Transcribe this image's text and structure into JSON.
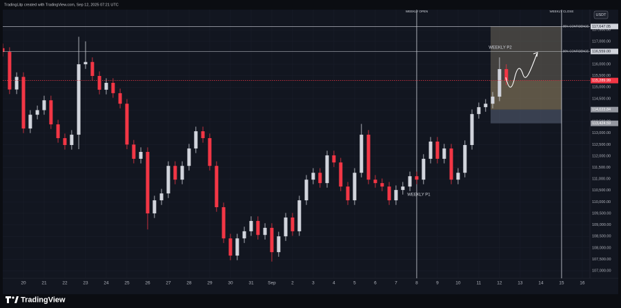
{
  "header": "TradingLitp created with TradingView.com, Sep 12, 2025 07:21 UTC",
  "footer": "TradingView",
  "chart_data": {
    "type": "candlestick",
    "currency": "USDT",
    "up_color": "#d1d4dc",
    "down_color": "#f23645",
    "grid": true,
    "x": [
      -1,
      -0.67,
      -0.33,
      0,
      0.33,
      0.67,
      1,
      1.33,
      1.67,
      2,
      2.33,
      2.67,
      3,
      3.33,
      3.67,
      4,
      4.33,
      4.67,
      5,
      5.33,
      5.67,
      6,
      6.33,
      6.67,
      7,
      7.33,
      7.67,
      8,
      8.33,
      8.67,
      9,
      9.33,
      9.67,
      10,
      10.33,
      10.67,
      11,
      11.33,
      11.67,
      12,
      12.33,
      12.67,
      13,
      13.33,
      13.67,
      14,
      14.33,
      14.67,
      15,
      15.33,
      15.67,
      16,
      16.33,
      16.67,
      17,
      17.33,
      17.67,
      18,
      18.33,
      18.67,
      19,
      19.33,
      19.67,
      20,
      20.33,
      20.67,
      21,
      21.33,
      21.67,
      22,
      22.33,
      22.67,
      23,
      23.33
    ],
    "open": [
      116700,
      116540,
      114900,
      115450,
      113200,
      113800,
      114000,
      114430,
      113380,
      112780,
      112480,
      112930,
      116000,
      116100,
      115490,
      114890,
      115190,
      114740,
      114280,
      112500,
      111880,
      112180,
      109500,
      110070,
      110370,
      111570,
      110970,
      111570,
      112330,
      113080,
      112780,
      111570,
      109770,
      108410,
      107660,
      108410,
      108720,
      109170,
      108560,
      108870,
      107810,
      108500,
      109320,
      108720,
      110070,
      110970,
      111270,
      110820,
      112030,
      111720,
      110670,
      110070,
      111270,
      112930,
      110970,
      110820,
      110670,
      110070,
      110520,
      110670,
      111120,
      110970,
      111880,
      112630,
      111880,
      112330,
      110970,
      111270,
      112480,
      113830,
      114130,
      114280,
      114590,
      115790
    ],
    "high": [
      116900,
      116740,
      115650,
      115650,
      114000,
      114200,
      114630,
      114630,
      113580,
      112980,
      113130,
      117200,
      117000,
      116300,
      115690,
      115390,
      115390,
      114940,
      114480,
      112700,
      112380,
      112380,
      110270,
      110570,
      111770,
      111770,
      111770,
      112530,
      113280,
      113280,
      112980,
      111770,
      109970,
      108610,
      108610,
      108920,
      109370,
      109370,
      109070,
      109070,
      108700,
      109520,
      109520,
      110270,
      111170,
      111470,
      111470,
      112230,
      112230,
      111920,
      110870,
      111470,
      113400,
      113130,
      111170,
      111020,
      110870,
      110720,
      110870,
      111320,
      111320,
      112080,
      112830,
      112830,
      112530,
      112530,
      111470,
      112680,
      114030,
      114330,
      114480,
      114790,
      116300,
      116000
    ],
    "low": [
      116340,
      114700,
      114700,
      113000,
      113000,
      113600,
      113800,
      113180,
      112580,
      112280,
      112280,
      112300,
      115800,
      115290,
      114690,
      114690,
      114540,
      114080,
      112300,
      111680,
      111680,
      108800,
      109300,
      109870,
      110170,
      110770,
      110770,
      111370,
      112130,
      112580,
      111370,
      109570,
      108210,
      107460,
      107460,
      108210,
      108520,
      108360,
      108360,
      107400,
      107610,
      108300,
      108520,
      108520,
      109870,
      110770,
      110620,
      110620,
      111520,
      110470,
      109870,
      109870,
      111070,
      110770,
      110620,
      110470,
      109870,
      109870,
      110320,
      110470,
      110770,
      110770,
      111680,
      111680,
      111680,
      110770,
      110770,
      111070,
      112280,
      113630,
      113930,
      114080,
      114390,
      115090
    ],
    "close": [
      116540,
      114900,
      115450,
      113200,
      113800,
      114000,
      114430,
      113380,
      112780,
      112480,
      112930,
      116000,
      116100,
      115490,
      114890,
      115190,
      114740,
      114280,
      112500,
      111880,
      112180,
      109500,
      110070,
      110370,
      111570,
      110970,
      111570,
      112330,
      113080,
      112780,
      111570,
      109770,
      108410,
      107660,
      108410,
      108720,
      109170,
      108560,
      108870,
      107810,
      108500,
      109320,
      108720,
      110070,
      110970,
      111270,
      110820,
      112030,
      111720,
      110670,
      110070,
      111270,
      112930,
      110970,
      110820,
      110670,
      110070,
      110520,
      110670,
      111120,
      110970,
      111880,
      112630,
      111880,
      112330,
      110970,
      111270,
      112480,
      113830,
      114130,
      114280,
      114590,
      115790,
      115290
    ],
    "xlim": [
      -1,
      27.37
    ],
    "ylim": [
      106670,
      118380
    ],
    "xticks": [
      {
        "value": 0,
        "label": "20"
      },
      {
        "value": 1,
        "label": "21"
      },
      {
        "value": 2,
        "label": "22"
      },
      {
        "value": 3,
        "label": "23"
      },
      {
        "value": 4,
        "label": "24"
      },
      {
        "value": 5,
        "label": "25"
      },
      {
        "value": 6,
        "label": "26"
      },
      {
        "value": 7,
        "label": "27"
      },
      {
        "value": 8,
        "label": "28"
      },
      {
        "value": 9,
        "label": "29"
      },
      {
        "value": 10,
        "label": "30"
      },
      {
        "value": 11,
        "label": "31"
      },
      {
        "value": 12,
        "label": "Sep"
      },
      {
        "value": 13,
        "label": "2"
      },
      {
        "value": 14,
        "label": "3"
      },
      {
        "value": 15,
        "label": "4"
      },
      {
        "value": 16,
        "label": "5"
      },
      {
        "value": 17,
        "label": "6"
      },
      {
        "value": 18,
        "label": "7"
      },
      {
        "value": 19,
        "label": "8"
      },
      {
        "value": 20,
        "label": "9"
      },
      {
        "value": 21,
        "label": "10"
      },
      {
        "value": 22,
        "label": "11"
      },
      {
        "value": 23,
        "label": "12"
      },
      {
        "value": 24,
        "label": "13"
      },
      {
        "value": 25,
        "label": "14"
      },
      {
        "value": 26,
        "label": "15"
      },
      {
        "value": 27,
        "label": "16"
      }
    ],
    "yticks": [
      {
        "value": 107000,
        "label": "107,000.00"
      },
      {
        "value": 107500,
        "label": "107,500.00"
      },
      {
        "value": 108000,
        "label": "108,000.00"
      },
      {
        "value": 108500,
        "label": "108,500.00"
      },
      {
        "value": 109000,
        "label": "109,000.00"
      },
      {
        "value": 109500,
        "label": "109,500.00"
      },
      {
        "value": 110000,
        "label": "110,000.00"
      },
      {
        "value": 110500,
        "label": "110,500.00"
      },
      {
        "value": 111000,
        "label": "111,000.00"
      },
      {
        "value": 111500,
        "label": "111,500.00"
      },
      {
        "value": 112000,
        "label": "112,000.00"
      },
      {
        "value": 112500,
        "label": "112,500.00"
      },
      {
        "value": 113000,
        "label": "113,000.00"
      },
      {
        "value": 113500,
        "label": "113,500.00"
      },
      {
        "value": 114000,
        "label": "114,000.00"
      },
      {
        "value": 114500,
        "label": "114,500.00"
      },
      {
        "value": 115000,
        "label": "115,000.00"
      },
      {
        "value": 115500,
        "label": "115,500.00"
      },
      {
        "value": 116000,
        "label": "116,000.00"
      },
      {
        "value": 116500,
        "label": "116,500.00"
      },
      {
        "value": 117000,
        "label": "117,000.00"
      },
      {
        "value": 117500,
        "label": "117,500.00"
      }
    ],
    "levels": [
      {
        "name": "95% CONFIDENCE",
        "value": 117647.05,
        "value_label": "117,647.05",
        "style": "solid",
        "color": "#d1d4dc"
      },
      {
        "name": "90% CONFIDENCE",
        "value": 116559,
        "value_label": "116,559.00",
        "style": "solid",
        "color": "#d1d4dc"
      },
      {
        "value": 115289.99,
        "value_label": "115,289.99",
        "style": "dotted",
        "color": "#f23645"
      },
      {
        "value": 114023.84,
        "value_label": "114,023.84",
        "style": "none",
        "color": "#9598a1"
      },
      {
        "value": 113424.59,
        "value_label": "113,424.59",
        "style": "none",
        "color": "#9598a1"
      }
    ],
    "zone": {
      "x": [
        22.57,
        26
      ],
      "colors": [
        "#6b665a",
        "#6b665a",
        "#9a8a66",
        "#5a6478"
      ]
    },
    "markers": [
      {
        "name": "WEEKLY OPEN",
        "x": 19
      },
      {
        "name": "WEEKLY CLOSE",
        "x": 26
      }
    ],
    "annotations": [
      "WEEKLY P1",
      "WEEKLY P2"
    ]
  }
}
